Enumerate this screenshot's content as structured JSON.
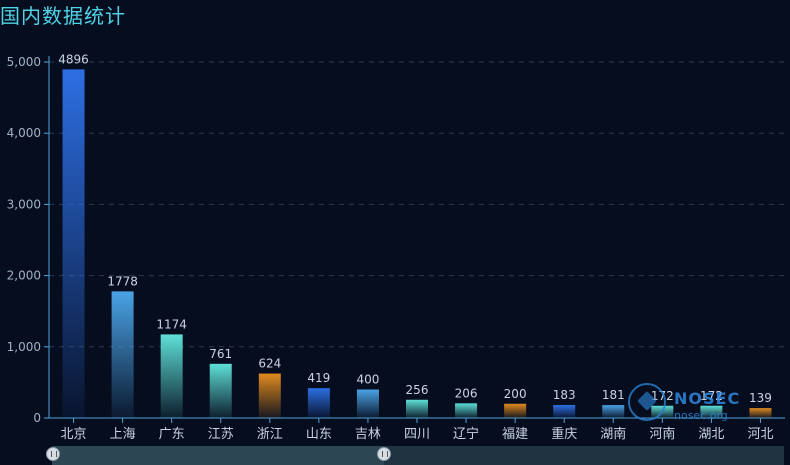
{
  "title": "国内数据统计",
  "watermark": {
    "brand": "NOSEC",
    "url": "nosec.org"
  },
  "colors": {
    "background": "#060d1f",
    "title": "#4fd3e6",
    "bar_blue": "#2d6fe3",
    "bar_skyblue": "#4aa3e6",
    "bar_teal": "#5ee0d6",
    "bar_orange": "#e08a1e"
  },
  "chart_data": {
    "type": "bar",
    "title": "国内数据统计",
    "xlabel": "",
    "ylabel": "",
    "ylim": [
      0,
      5000
    ],
    "yticks": [
      "0",
      "1,000",
      "2,000",
      "3,000",
      "4,000",
      "5,000"
    ],
    "grid": true,
    "categories": [
      "北京",
      "上海",
      "广东",
      "江苏",
      "浙江",
      "山东",
      "吉林",
      "四川",
      "辽宁",
      "福建",
      "重庆",
      "湖南",
      "河南",
      "湖北",
      "河北"
    ],
    "values": [
      4896,
      1778,
      1174,
      761,
      624,
      419,
      400,
      256,
      206,
      200,
      183,
      181,
      172,
      172,
      139
    ],
    "bar_color_cycle": [
      "blue",
      "skyblue",
      "teal",
      "teal",
      "orange"
    ]
  }
}
